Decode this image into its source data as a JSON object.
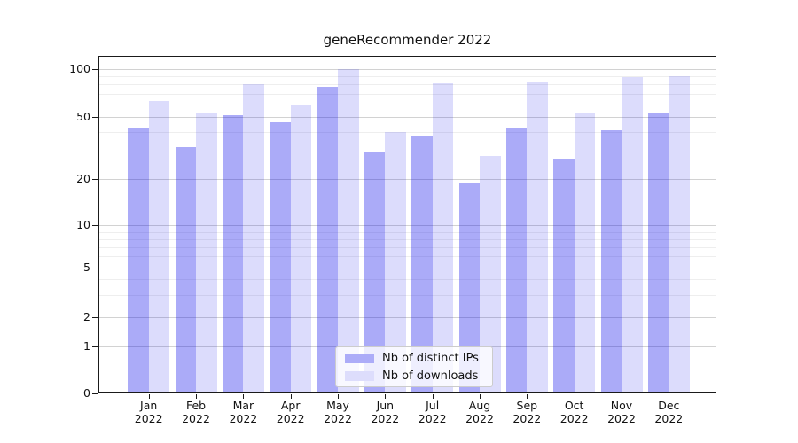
{
  "figure": {
    "title": "geneRecommender 2022"
  },
  "chart_data": {
    "type": "bar",
    "title": "geneRecommender 2022",
    "categories": [
      {
        "month": "Jan",
        "year": "2022"
      },
      {
        "month": "Feb",
        "year": "2022"
      },
      {
        "month": "Mar",
        "year": "2022"
      },
      {
        "month": "Apr",
        "year": "2022"
      },
      {
        "month": "May",
        "year": "2022"
      },
      {
        "month": "Jun",
        "year": "2022"
      },
      {
        "month": "Jul",
        "year": "2022"
      },
      {
        "month": "Aug",
        "year": "2022"
      },
      {
        "month": "Sep",
        "year": "2022"
      },
      {
        "month": "Oct",
        "year": "2022"
      },
      {
        "month": "Nov",
        "year": "2022"
      },
      {
        "month": "Dec",
        "year": "2022"
      }
    ],
    "series": [
      {
        "name": "Nb of distinct IPs",
        "color": "rgba(10,10,235,0.34)",
        "color_hex_on_white": "#acacf8",
        "values": [
          42,
          32,
          51,
          46,
          77,
          30,
          38,
          19,
          43,
          27,
          41,
          53
        ]
      },
      {
        "name": "Nb of downloads",
        "color": "rgba(10,10,235,0.14)",
        "color_hex_on_white": "#ddddfc",
        "values": [
          63,
          53,
          80,
          60,
          100,
          40,
          81,
          28,
          82,
          53,
          89,
          90
        ]
      }
    ],
    "xlabel": "",
    "ylabel": "",
    "yscale": "log-like (compressed toward zero, includes 0)",
    "ylim": [
      0,
      105
    ],
    "yticks": [
      100,
      50,
      20,
      10,
      5,
      2,
      1,
      0
    ],
    "ytick_labels": [
      "100",
      "50",
      "20",
      "10",
      "5",
      "2",
      "1",
      "0"
    ],
    "yticks_minor": [
      90,
      80,
      70,
      60,
      40,
      30,
      9,
      8,
      7,
      6,
      4,
      3
    ],
    "grid": true,
    "legend": {
      "position": "lower-center",
      "entries": [
        "Nb of distinct IPs",
        "Nb of downloads"
      ]
    }
  }
}
